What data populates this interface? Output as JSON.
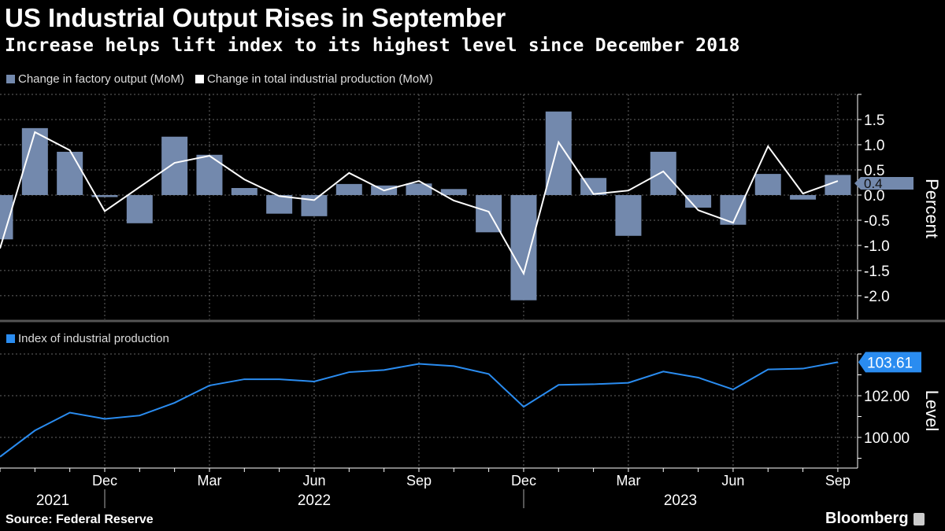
{
  "header": {
    "title": "US Industrial Output Rises in September",
    "subtitle": "Increase helps lift index to its highest level since December 2018"
  },
  "footer": {
    "source": "Source: Federal Reserve",
    "brand": "Bloomberg"
  },
  "colors": {
    "bars": "#7389ad",
    "total_line": "#ffffff",
    "index_line": "#2a8cf0",
    "background": "#000000"
  },
  "chart_data": [
    {
      "type": "bar+line",
      "months": [
        "Sep 2021",
        "Oct 2021",
        "Nov 2021",
        "Dec 2021",
        "Jan 2022",
        "Feb 2022",
        "Mar 2022",
        "Apr 2022",
        "May 2022",
        "Jun 2022",
        "Jul 2022",
        "Aug 2022",
        "Sep 2022",
        "Oct 2022",
        "Nov 2022",
        "Dec 2022",
        "Jan 2023",
        "Feb 2023",
        "Mar 2023",
        "Apr 2023",
        "May 2023",
        "Jun 2023",
        "Jul 2023",
        "Aug 2023",
        "Sep 2023"
      ],
      "series": [
        {
          "name": "Change in factory output (MoM)",
          "kind": "bar",
          "values": [
            -0.88,
            1.33,
            0.86,
            -0.04,
            -0.56,
            1.16,
            0.8,
            0.14,
            -0.37,
            -0.42,
            0.22,
            0.19,
            0.23,
            0.12,
            -0.74,
            -2.09,
            1.66,
            0.34,
            -0.81,
            0.86,
            -0.25,
            -0.59,
            0.42,
            -0.09,
            0.4
          ]
        },
        {
          "name": "Change in total industrial production (MoM)",
          "kind": "line",
          "values": [
            -1.06,
            1.25,
            0.89,
            -0.32,
            0.16,
            0.64,
            0.78,
            0.31,
            -0.02,
            -0.1,
            0.44,
            0.09,
            0.28,
            -0.11,
            -0.33,
            -1.56,
            1.05,
            0.02,
            0.09,
            0.47,
            -0.3,
            -0.55,
            0.97,
            0.03,
            0.28
          ]
        }
      ],
      "ylabel": "Percent",
      "ylim": [
        -2.47,
        2.0
      ],
      "yticks": [
        "1.5",
        "1.0",
        "0.5",
        "0.0",
        "-0.5",
        "-1.0",
        "-1.5",
        "-2.0"
      ],
      "last_value_label": "0.4",
      "grid": true,
      "legend": "top-left"
    },
    {
      "type": "line",
      "series": [
        {
          "name": "Index of industrial production",
          "values": [
            99.07,
            100.33,
            101.19,
            100.89,
            101.05,
            101.66,
            102.49,
            102.79,
            102.79,
            102.68,
            103.13,
            103.23,
            103.53,
            103.42,
            103.04,
            101.47,
            102.52,
            102.55,
            102.62,
            103.16,
            102.87,
            102.3,
            103.26,
            103.3,
            103.61
          ]
        }
      ],
      "ylabel": "Level",
      "ylim": [
        98.53,
        104.0
      ],
      "yticks": [
        "102.00",
        "100.00"
      ],
      "last_value_label": "103.61",
      "grid": true,
      "legend": "top-left",
      "xtick_labels": [
        "Dec",
        "Mar",
        "Jun",
        "Sep",
        "Dec",
        "Mar",
        "Jun",
        "Sep"
      ],
      "year_labels": [
        "2021",
        "2022",
        "2023"
      ]
    }
  ]
}
